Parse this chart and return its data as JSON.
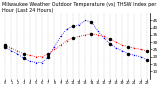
{
  "title": "Milwaukee Weather Outdoor Temperature (vs) THSW Index per Hour (Last 24 Hours)",
  "title_fontsize": 3.5,
  "x_hours": [
    0,
    1,
    2,
    3,
    4,
    5,
    6,
    7,
    8,
    9,
    10,
    11,
    12,
    13,
    14,
    15,
    16,
    17,
    18,
    19,
    20,
    21,
    22,
    23
  ],
  "temp_red": [
    28,
    26,
    24,
    22,
    21,
    20,
    20,
    22,
    25,
    28,
    31,
    33,
    34,
    35,
    36,
    35,
    34,
    32,
    30,
    28,
    27,
    26,
    25,
    24
  ],
  "thsw_blue": [
    27,
    24,
    22,
    19,
    17,
    16,
    16,
    20,
    27,
    34,
    39,
    41,
    42,
    45,
    44,
    38,
    33,
    29,
    26,
    24,
    22,
    21,
    20,
    18
  ],
  "ylim": [
    5,
    50
  ],
  "yticks": [
    10,
    15,
    20,
    25,
    30,
    35,
    40,
    45
  ],
  "xtick_labels": [
    "0",
    "1",
    "2",
    "3",
    "4",
    "5",
    "6",
    "7",
    "8",
    "9",
    "10",
    "11",
    "12",
    "13",
    "14",
    "15",
    "16",
    "17",
    "18",
    "19",
    "20",
    "21",
    "22",
    "23"
  ],
  "bg_color": "#ffffff",
  "line_blue": "#0000ff",
  "line_red": "#ff0000",
  "dot_black": "#000000",
  "grid_color": "#888888"
}
